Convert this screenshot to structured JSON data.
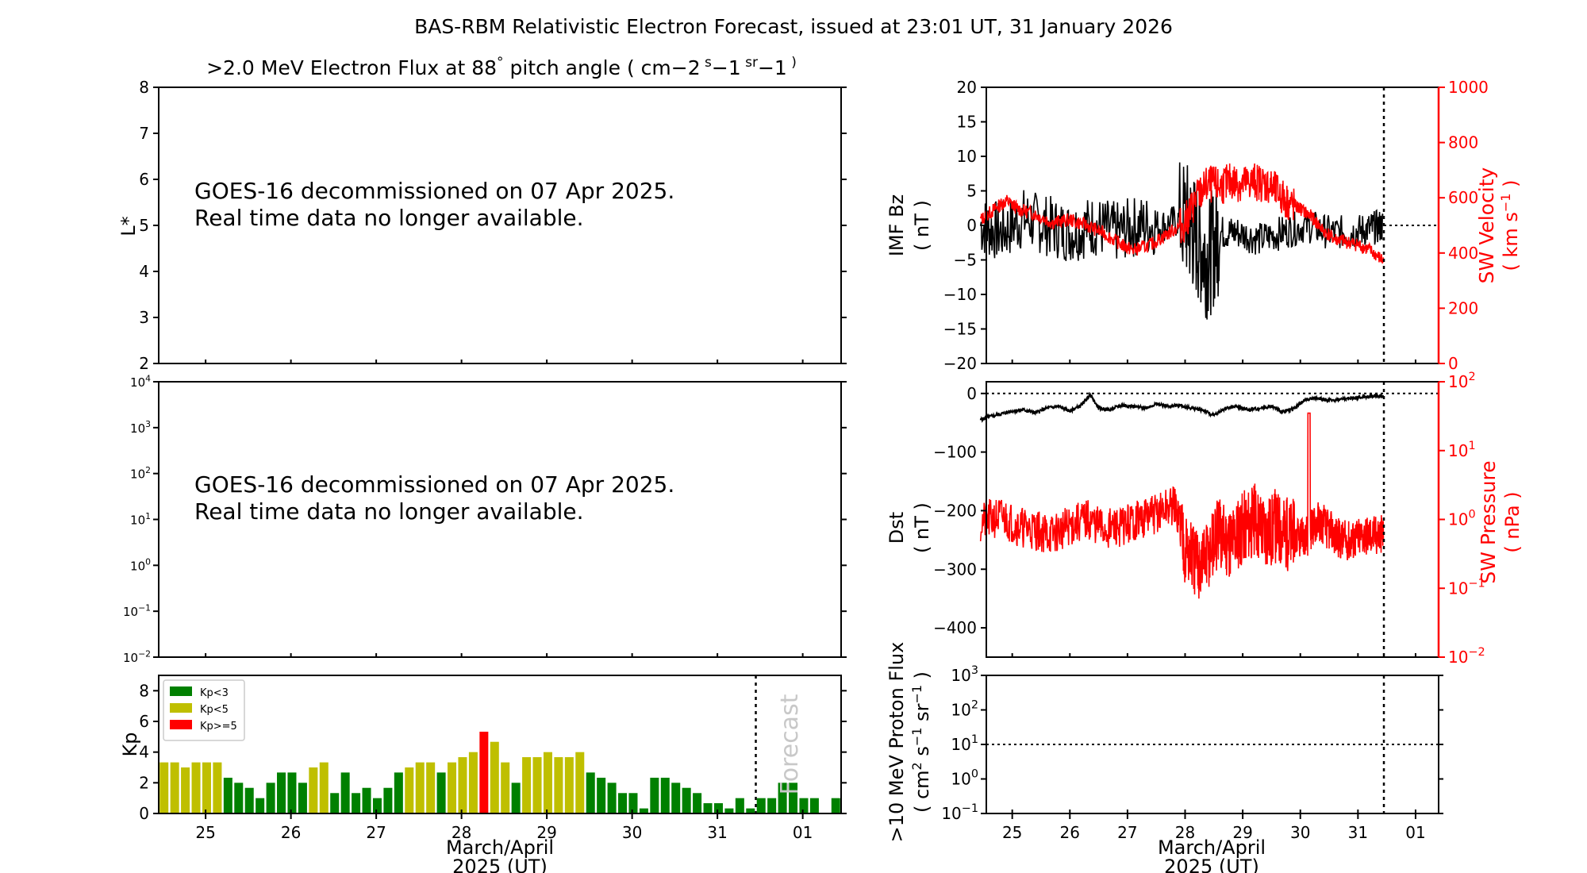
{
  "title": "BAS-RBM Relativistic Electron Forecast, issued at 23:01 UT, 31 January 2026",
  "date_label": "March/April",
  "date_year": "2025 (UT)",
  "notice_line1": "GOES-16 decommissioned on 07 Apr 2025.",
  "notice_line2": "Real time data no longer available.",
  "forecast_label": "Forecast",
  "colors": {
    "green": "#008000",
    "olive": "#bfbf00",
    "red": "#ff0000",
    "black": "#000000"
  },
  "chart_data": [
    {
      "type": "heatmap",
      "title_parts": [
        ">2.0 MeV Electron Flux at 88",
        "°",
        " pitch angle ( cm",
        "−2",
        " s",
        "−1",
        " sr",
        "−1",
        " )"
      ],
      "ylabel": "L*",
      "ylim": [
        2,
        8
      ],
      "yticks": [
        "2",
        "3",
        "4",
        "5",
        "6",
        "7",
        "8"
      ],
      "data": []
    },
    {
      "type": "heatmap",
      "ylabel": "",
      "yscale": "log",
      "yticks": [
        {
          "b": "10",
          "e": "−2"
        },
        {
          "b": "10",
          "e": "−1"
        },
        {
          "b": "10",
          "e": "0"
        },
        {
          "b": "10",
          "e": "1"
        },
        {
          "b": "10",
          "e": "2"
        },
        {
          "b": "10",
          "e": "3"
        },
        {
          "b": "10",
          "e": "4"
        }
      ],
      "data": []
    },
    {
      "type": "bar",
      "ylabel": "Kp",
      "ylim": [
        0,
        9
      ],
      "yticks": [
        "0",
        "2",
        "4",
        "6",
        "8"
      ],
      "xticks": [
        "25",
        "26",
        "27",
        "28",
        "29",
        "30",
        "31",
        "01"
      ],
      "legend": [
        "Kp<3",
        "Kp<5",
        "Kp>=5"
      ],
      "legend_position": "top-left",
      "x_start_day": 24.45,
      "x_end_day": 32.45,
      "forecast_marker_day": 31.45,
      "bin_hours": 3,
      "values": [
        3.33,
        3.33,
        3.0,
        3.33,
        3.33,
        3.33,
        2.33,
        2.0,
        1.67,
        1.0,
        2.0,
        2.67,
        2.67,
        2.0,
        3.0,
        3.33,
        1.33,
        2.67,
        1.33,
        1.67,
        1.0,
        1.67,
        2.67,
        3.0,
        3.33,
        3.33,
        2.67,
        3.33,
        3.67,
        4.0,
        5.33,
        4.67,
        3.33,
        2.0,
        3.67,
        3.67,
        4.0,
        3.67,
        3.67,
        4.0,
        2.67,
        2.33,
        2.0,
        1.33,
        1.33,
        0.33,
        2.33,
        2.33,
        2.0,
        1.67,
        1.33,
        0.67,
        0.67,
        0.33,
        1.0,
        0.33,
        1.0,
        1.0,
        2.0,
        2.0,
        1.0,
        1.0,
        0.0,
        1.0
      ]
    },
    {
      "type": "line",
      "ylabel_left": [
        "IMF Bz",
        "( nT )"
      ],
      "ylabel_right": [
        "SW Velocity",
        "( km s",
        "−1",
        " )"
      ],
      "ylim_left": [
        -20,
        20
      ],
      "ylim_right": [
        0,
        1000
      ],
      "yticks_left": [
        "−20",
        "−15",
        "−10",
        "−5",
        "0",
        "5",
        "10",
        "15",
        "20"
      ],
      "yticks_right": [
        "0",
        "200",
        "400",
        "600",
        "800",
        "1000"
      ],
      "series": [
        {
          "key": "bz",
          "unit": "nT",
          "x": [
            24.45,
            24.8,
            25.2,
            25.6,
            26.0,
            26.4,
            26.8,
            27.2,
            27.6,
            28.0,
            28.2,
            28.4,
            28.6,
            28.9,
            29.3,
            29.7,
            30.1,
            30.5,
            30.9,
            31.2,
            31.45
          ],
          "y": [
            0,
            -1,
            1,
            0,
            -1,
            0,
            -1,
            0,
            0,
            1,
            -2,
            -5,
            -1,
            -1,
            -2,
            -1,
            0,
            -1,
            -1,
            -0.5,
            0
          ]
        },
        {
          "key": "vsw",
          "unit": "km/s",
          "x": [
            24.45,
            24.7,
            24.9,
            25.1,
            25.4,
            25.7,
            26.0,
            26.3,
            26.6,
            26.9,
            27.1,
            27.4,
            27.7,
            28.0,
            28.2,
            28.4,
            28.6,
            28.8,
            29.0,
            29.2,
            29.4,
            29.6,
            29.8,
            30.0,
            30.2,
            30.4,
            30.6,
            30.8,
            31.0,
            31.2,
            31.45
          ],
          "y": [
            520,
            560,
            590,
            560,
            540,
            510,
            520,
            500,
            470,
            430,
            410,
            430,
            470,
            510,
            600,
            650,
            640,
            660,
            650,
            660,
            650,
            620,
            580,
            560,
            530,
            480,
            450,
            440,
            430,
            410,
            370
          ]
        }
      ]
    },
    {
      "type": "line",
      "ylabel_left": [
        "Dst",
        "( nT )"
      ],
      "ylabel_right": [
        "SW Pressure",
        "( nPa )"
      ],
      "ylim_left": [
        -450,
        20
      ],
      "yticks_left": [
        "−400",
        "−300",
        "−200",
        "−100",
        "0"
      ],
      "yscale_right": "log",
      "yticks_right": [
        {
          "b": "10",
          "e": "−2"
        },
        {
          "b": "10",
          "e": "−1"
        },
        {
          "b": "10",
          "e": "0"
        },
        {
          "b": "10",
          "e": "1"
        },
        {
          "b": "10",
          "e": "2"
        }
      ],
      "series": [
        {
          "key": "dst",
          "unit": "nT",
          "x": [
            24.45,
            24.6,
            24.8,
            25.0,
            25.2,
            25.4,
            25.6,
            25.8,
            26.0,
            26.2,
            26.35,
            26.5,
            26.7,
            26.9,
            27.1,
            27.3,
            27.5,
            27.7,
            27.9,
            28.1,
            28.3,
            28.5,
            28.7,
            28.9,
            29.1,
            29.3,
            29.5,
            29.7,
            29.9,
            30.1,
            30.3,
            30.5,
            30.7,
            30.9,
            31.1,
            31.3,
            31.45
          ],
          "y": [
            -45,
            -40,
            -35,
            -30,
            -28,
            -33,
            -25,
            -22,
            -30,
            -20,
            -2,
            -25,
            -28,
            -20,
            -22,
            -25,
            -18,
            -22,
            -20,
            -25,
            -28,
            -38,
            -25,
            -22,
            -28,
            -25,
            -22,
            -32,
            -25,
            -10,
            -8,
            -12,
            -10,
            -8,
            -6,
            -4,
            -5
          ]
        },
        {
          "key": "psw",
          "unit": "nPa",
          "x": [
            24.45,
            24.8,
            25.1,
            25.4,
            25.7,
            26.0,
            26.3,
            26.6,
            26.9,
            27.2,
            27.5,
            27.8,
            28.0,
            28.2,
            28.4,
            28.6,
            28.8,
            29.0,
            29.2,
            29.4,
            29.6,
            29.8,
            30.0,
            30.15,
            30.3,
            30.5,
            30.7,
            30.9,
            31.1,
            31.3,
            31.45
          ],
          "y": [
            0.9,
            1.1,
            0.8,
            0.7,
            0.6,
            0.8,
            1.0,
            0.7,
            0.8,
            1.0,
            1.2,
            1.6,
            0.4,
            0.2,
            0.3,
            0.6,
            0.5,
            0.8,
            1.0,
            0.7,
            0.8,
            0.6,
            0.5,
            0.6,
            1.0,
            0.7,
            0.5,
            0.5,
            0.6,
            0.6,
            0.6
          ]
        }
      ]
    },
    {
      "type": "line",
      "ylabel_parts": [
        ">10 MeV Proton Flux",
        "( cm",
        "2",
        " s",
        "−1",
        " sr",
        "−1",
        " )"
      ],
      "yscale": "log",
      "yticks": [
        {
          "b": "10",
          "e": "−1"
        },
        {
          "b": "10",
          "e": "0"
        },
        {
          "b": "10",
          "e": "1"
        },
        {
          "b": "10",
          "e": "2"
        },
        {
          "b": "10",
          "e": "3"
        }
      ],
      "threshold": 10,
      "xticks": [
        "25",
        "26",
        "27",
        "28",
        "29",
        "30",
        "31",
        "01"
      ],
      "series": []
    }
  ]
}
